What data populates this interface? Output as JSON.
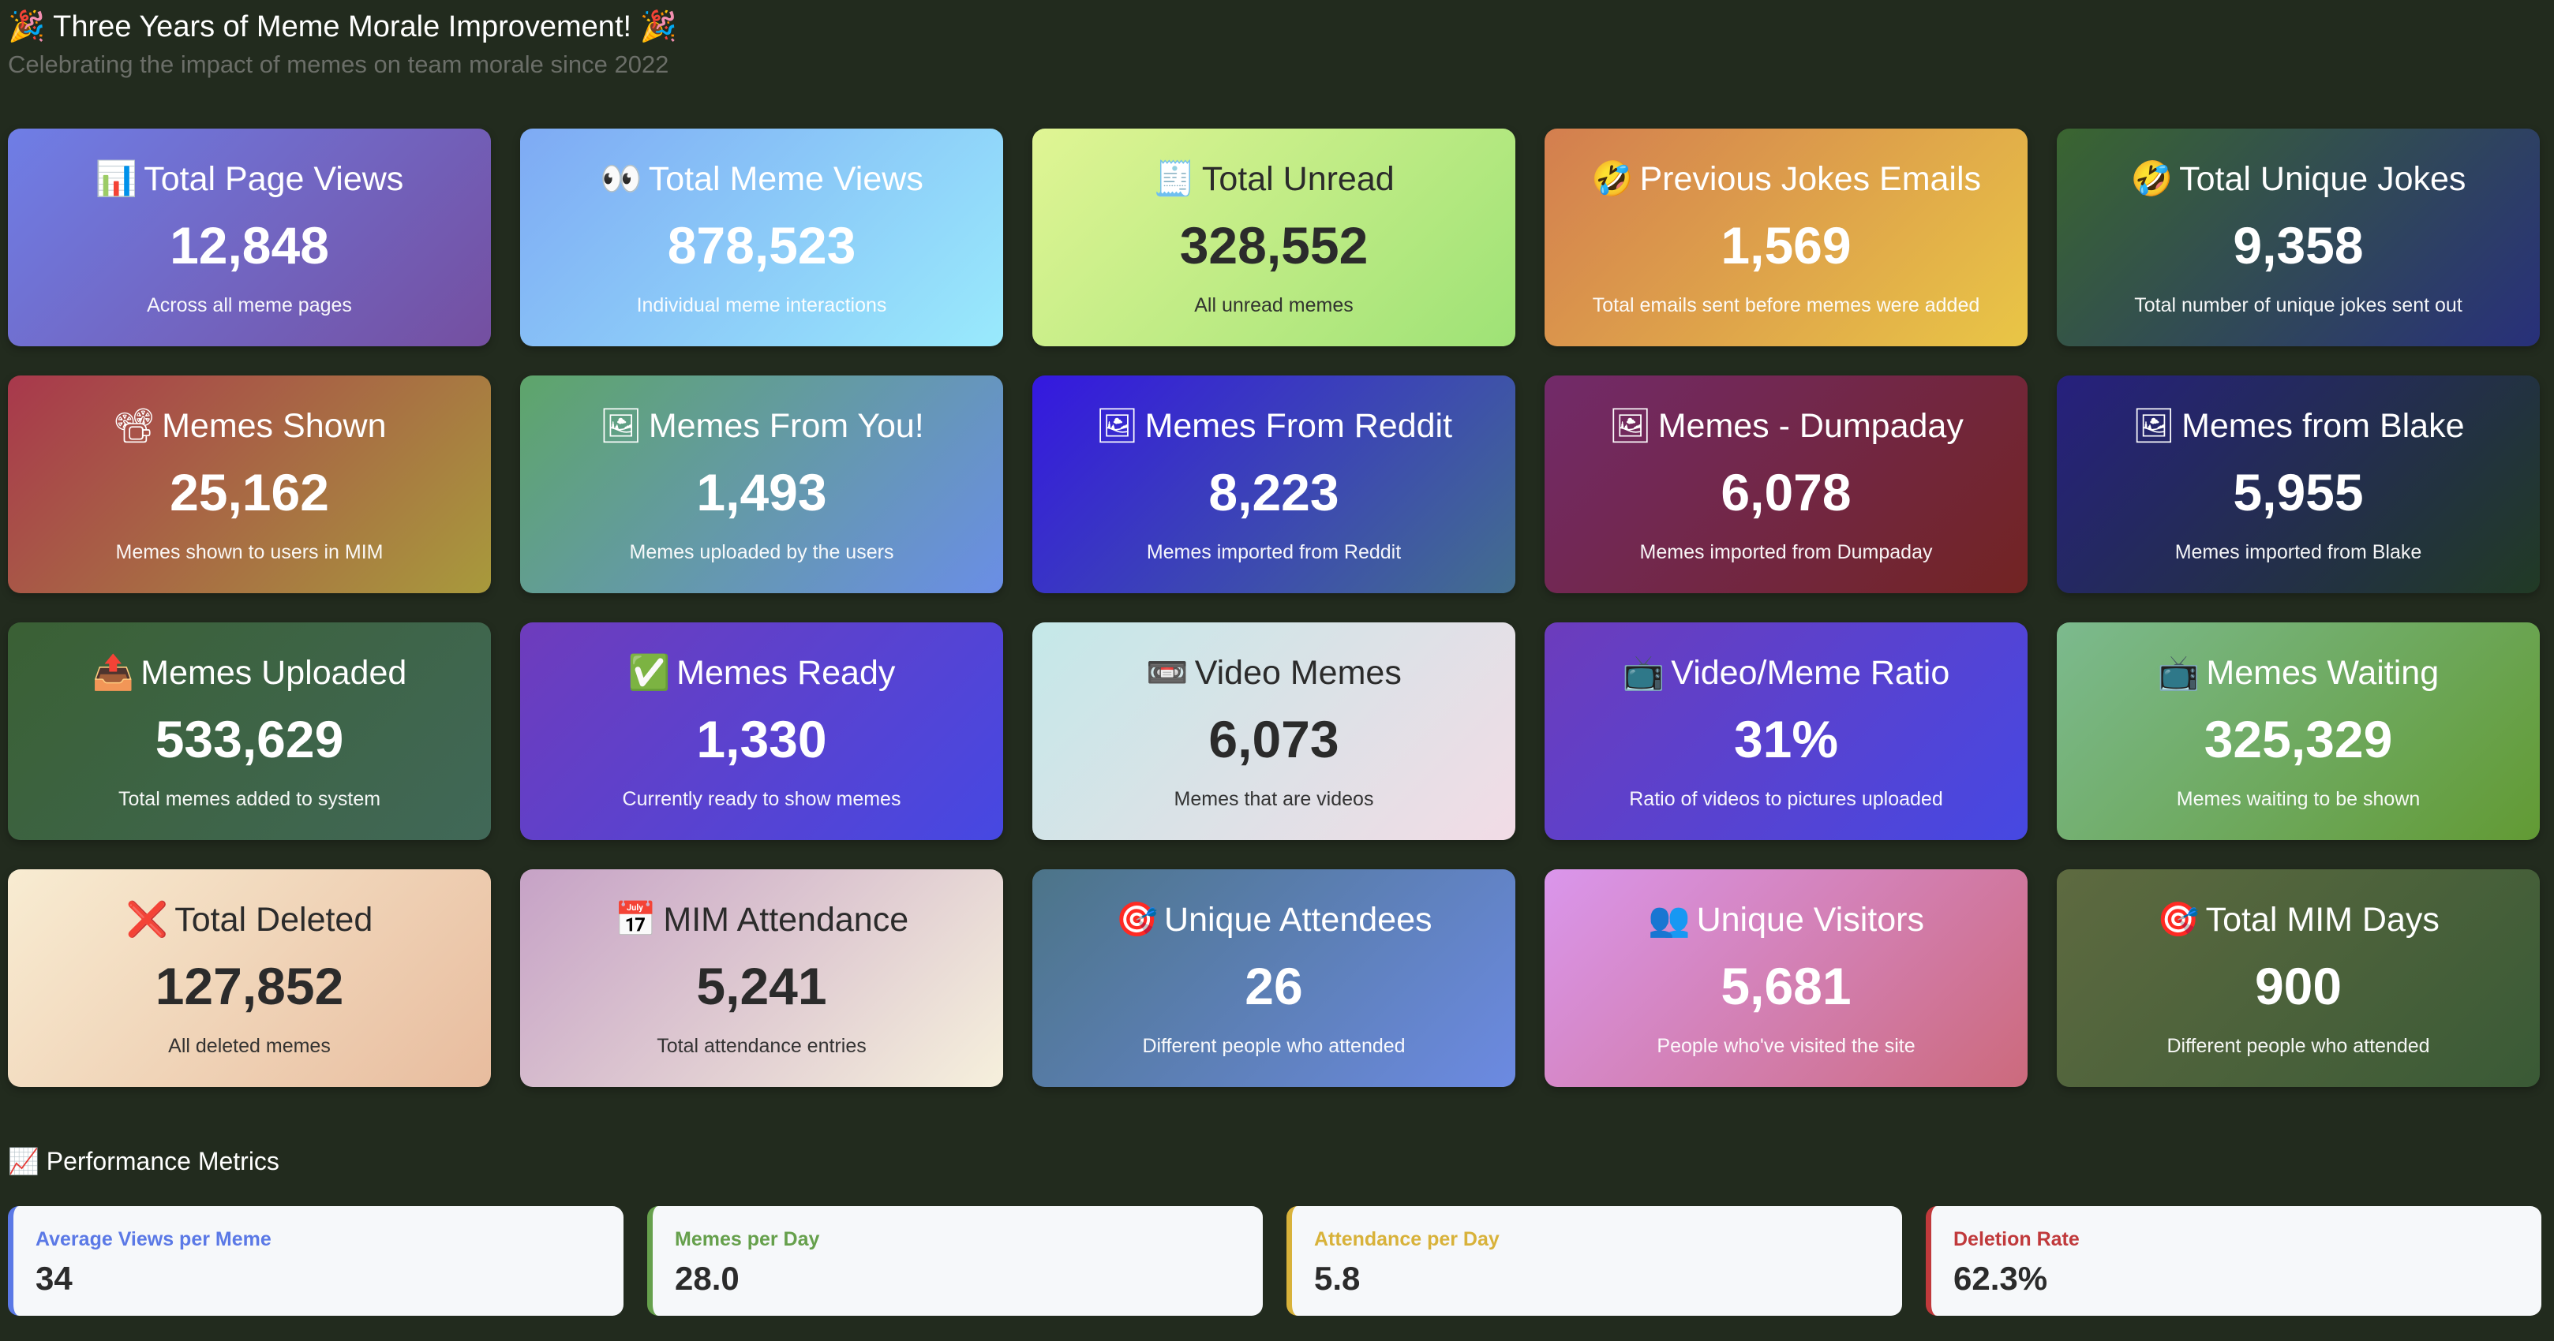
{
  "header": {
    "title": "🎉 Three Years of Meme Morale Improvement! 🎉",
    "subtitle": "Celebrating the impact of memes on team morale since 2022"
  },
  "cards": [
    {
      "icon": "📊",
      "icon_name": "bar-chart-icon",
      "title": "Total Page Views",
      "value": "12,848",
      "desc": "Across all meme pages",
      "from": "#6f7ee6",
      "to": "#744fa0",
      "dark": false
    },
    {
      "icon": "👀",
      "icon_name": "eyes-icon",
      "title": "Total Meme Views",
      "value": "878,523",
      "desc": "Individual meme interactions",
      "from": "#7eaaf4",
      "to": "#99eafc",
      "dark": false
    },
    {
      "icon": "🧾",
      "icon_name": "receipt-icon",
      "title": "Total Unread",
      "value": "328,552",
      "desc": "All unread memes",
      "from": "#e0f594",
      "to": "#9ee276",
      "dark": true
    },
    {
      "icon": "🤣",
      "icon_name": "laughing-icon",
      "title": "Previous Jokes Emails",
      "value": "1,569",
      "desc": "Total emails sent before memes were added",
      "from": "#d37e4f",
      "to": "#e9c646",
      "dark": false
    },
    {
      "icon": "🤣",
      "icon_name": "laughing-icon",
      "title": "Total Unique Jokes",
      "value": "9,358",
      "desc": "Total number of unique jokes sent out",
      "from": "#3a6530",
      "to": "#28307a",
      "dark": false
    },
    {
      "icon": "📽",
      "icon_name": "projector-icon",
      "title": "Memes Shown",
      "value": "25,162",
      "desc": "Memes shown to users in MIM",
      "from": "#a8384c",
      "to": "#a89a3c",
      "dark": false
    },
    {
      "icon": "🖼",
      "icon_name": "picture-icon",
      "title": "Memes From You!",
      "value": "1,493",
      "desc": "Memes uploaded by the users",
      "from": "#5ea56a",
      "to": "#6a8ee6",
      "dark": false
    },
    {
      "icon": "🖼",
      "icon_name": "picture-icon",
      "title": "Memes From Reddit",
      "value": "8,223",
      "desc": "Memes imported from Reddit",
      "from": "#3418e0",
      "to": "#436e8e",
      "dark": false
    },
    {
      "icon": "🖼",
      "icon_name": "picture-icon",
      "title": "Memes - Dumpaday",
      "value": "6,078",
      "desc": "Memes imported from Dumpaday",
      "from": "#722a6a",
      "to": "#722422",
      "dark": false
    },
    {
      "icon": "🖼",
      "icon_name": "picture-icon",
      "title": "Memes from Blake",
      "value": "5,955",
      "desc": "Memes imported from Blake",
      "from": "#26207e",
      "to": "#213a25",
      "dark": false
    },
    {
      "icon": "📤",
      "icon_name": "outbox-icon",
      "title": "Memes Uploaded",
      "value": "533,629",
      "desc": "Total memes added to system",
      "from": "#3a6034",
      "to": "#416858",
      "dark": false
    },
    {
      "icon": "✅",
      "icon_name": "check-mark-icon",
      "title": "Memes Ready",
      "value": "1,330",
      "desc": "Currently ready to show memes",
      "from": "#6e3cbc",
      "to": "#4648e2",
      "dark": false
    },
    {
      "icon": "📼",
      "icon_name": "videotape-icon",
      "title": "Video Memes",
      "value": "6,073",
      "desc": "Memes that are videos",
      "from": "#c4e8e8",
      "to": "#f2dce6",
      "dark": true
    },
    {
      "icon": "📺",
      "icon_name": "television-icon",
      "title": "Video/Meme Ratio",
      "value": "31%",
      "desc": "Ratio of videos to pictures uploaded",
      "from": "#6c3cbc",
      "to": "#4648e2",
      "dark": false
    },
    {
      "icon": "📺",
      "icon_name": "television-icon",
      "title": "Memes Waiting",
      "value": "325,329",
      "desc": "Memes waiting to be shown",
      "from": "#7cba8e",
      "to": "#629a34",
      "dark": false
    },
    {
      "icon": "❌",
      "icon_name": "cross-mark-icon",
      "title": "Total Deleted",
      "value": "127,852",
      "desc": "All deleted memes",
      "from": "#f8ecd2",
      "to": "#e8bc9e",
      "dark": true
    },
    {
      "icon": "📅",
      "icon_name": "calendar-icon",
      "title": "MIM Attendance",
      "value": "5,241",
      "desc": "Total attendance entries",
      "from": "#c6a2c6",
      "to": "#f6f0dc",
      "dark": true
    },
    {
      "icon": "🎯",
      "icon_name": "target-icon",
      "title": "Unique Attendees",
      "value": "26",
      "desc": "Different people who attended",
      "from": "#4c7488",
      "to": "#6c8ae2",
      "dark": false
    },
    {
      "icon": "👥",
      "icon_name": "people-icon",
      "title": "Unique Visitors",
      "value": "5,681",
      "desc": "People who've visited the site",
      "from": "#da96ec",
      "to": "#cc6a7c",
      "dark": false
    },
    {
      "icon": "🎯",
      "icon_name": "target-icon",
      "title": "Total MIM Days",
      "value": "900",
      "desc": "Different people who attended",
      "from": "#5e6a40",
      "to": "#3a5a36",
      "dark": false
    }
  ],
  "performance": {
    "title": "📈 Performance Metrics",
    "metrics": [
      {
        "label": "Average Views per Meme",
        "value": "34",
        "color": "#5b79e6"
      },
      {
        "label": "Memes per Day",
        "value": "28.0",
        "color": "#66a04c"
      },
      {
        "label": "Attendance per Day",
        "value": "5.8",
        "color": "#d8b23a"
      },
      {
        "label": "Deletion Rate",
        "value": "62.3%",
        "color": "#c0393b"
      }
    ]
  }
}
